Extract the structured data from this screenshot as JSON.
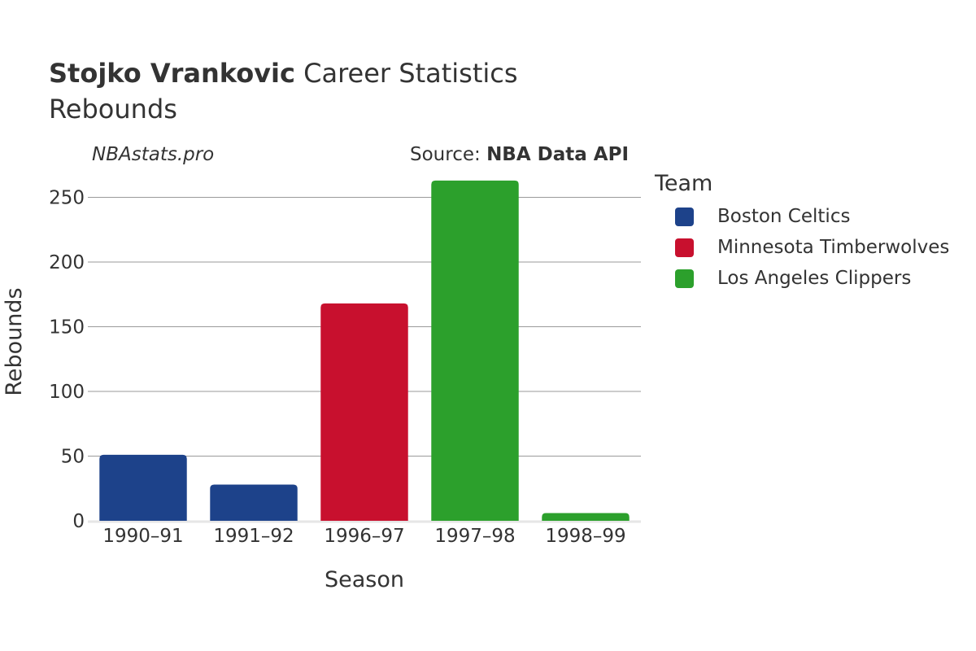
{
  "header": {
    "title_bold": "Stojko Vrankovic",
    "title_rest": " Career Statistics",
    "subtitle": "Rebounds",
    "watermark": "NBAstats.pro",
    "source_prefix": "Source: ",
    "source_name": "NBA Data API"
  },
  "legend": {
    "title": "Team",
    "items": [
      {
        "label": "Boston Celtics",
        "color": "#1d428a"
      },
      {
        "label": "Minnesota Timberwolves",
        "color": "#c8102e"
      },
      {
        "label": "Los Angeles Clippers",
        "color": "#2ca02c"
      }
    ]
  },
  "chart_data": {
    "type": "bar",
    "title": "Stojko Vrankovic Career Statistics",
    "subtitle": "Rebounds",
    "xlabel": "Season",
    "ylabel": "Rebounds",
    "categories": [
      "1990–91",
      "1991–92",
      "1996–97",
      "1997–98",
      "1998–99"
    ],
    "values": [
      51,
      28,
      168,
      263,
      6
    ],
    "teams": [
      "Boston Celtics",
      "Boston Celtics",
      "Minnesota Timberwolves",
      "Los Angeles Clippers",
      "Los Angeles Clippers"
    ],
    "bar_colors": [
      "#1d428a",
      "#1d428a",
      "#c8102e",
      "#2ca02c",
      "#2ca02c"
    ],
    "yticks": [
      0,
      50,
      100,
      150,
      200,
      250
    ],
    "ylim": [
      0,
      270
    ],
    "grid": true,
    "legend_position": "right"
  }
}
